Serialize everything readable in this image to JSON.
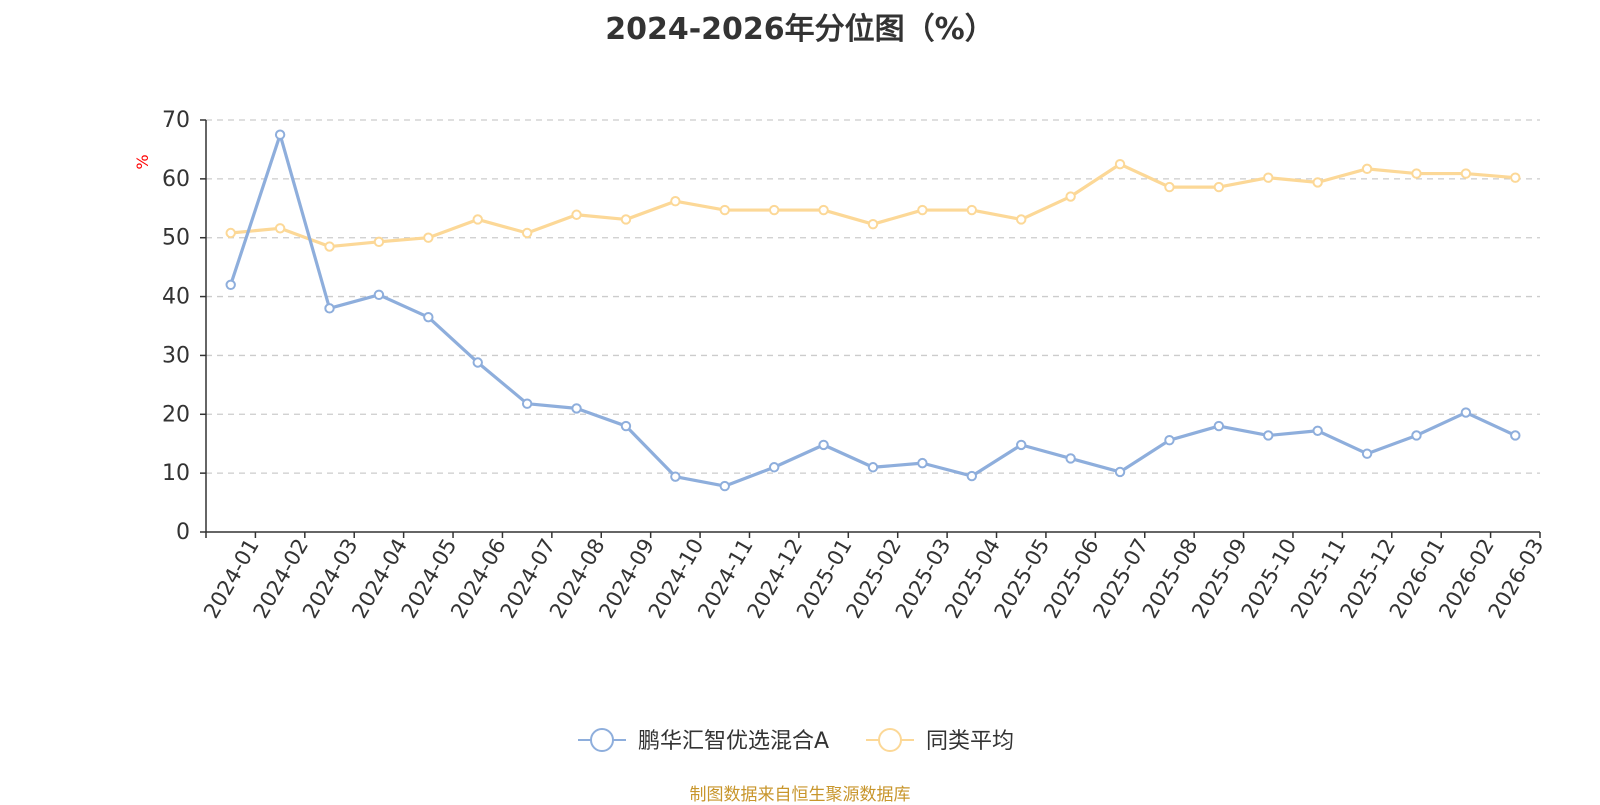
{
  "chart_data": {
    "type": "line",
    "title": "2024-2026年分位图（%）",
    "ylabel": "%",
    "xlabel": "",
    "ylim": [
      0,
      70
    ],
    "yticks": [
      "0",
      "10",
      "20",
      "30",
      "40",
      "50",
      "60",
      "70"
    ],
    "grid": true,
    "legend_placement": "bottom-center",
    "categories": [
      "2024-01",
      "2024-02",
      "2024-03",
      "2024-04",
      "2024-05",
      "2024-06",
      "2024-07",
      "2024-08",
      "2024-09",
      "2024-10",
      "2024-11",
      "2024-12",
      "2025-01",
      "2025-02",
      "2025-03",
      "2025-04",
      "2025-05",
      "2025-06",
      "2025-07",
      "2025-08",
      "2025-09",
      "2025-10",
      "2025-11",
      "2025-12",
      "2026-01",
      "2026-02",
      "2026-03"
    ],
    "series": [
      {
        "name": "鹏华汇智优选混合A",
        "color": "#8eaedc",
        "values": [
          42,
          67.5,
          38,
          40.3,
          36.5,
          28.8,
          21.8,
          21,
          18,
          9.4,
          7.8,
          11,
          14.8,
          11,
          11.7,
          9.5,
          14.8,
          12.5,
          10.2,
          15.6,
          18,
          16.4,
          17.2,
          13.3,
          16.4,
          20.3,
          16.4
        ]
      },
      {
        "name": "同类平均",
        "color": "#fcd897",
        "values": [
          50.8,
          51.6,
          48.5,
          49.3,
          50,
          53.1,
          50.8,
          53.9,
          53.1,
          56.2,
          54.7,
          54.7,
          54.7,
          52.3,
          54.7,
          54.7,
          53.1,
          57,
          62.5,
          58.6,
          58.6,
          60.2,
          59.4,
          61.7,
          60.9,
          60.9,
          60.2
        ]
      }
    ]
  },
  "source_note": "制图数据来自恒生聚源数据库",
  "colors": {
    "ylabel": "#ff0000",
    "axis": "#333333",
    "grid": "#cccccc"
  }
}
